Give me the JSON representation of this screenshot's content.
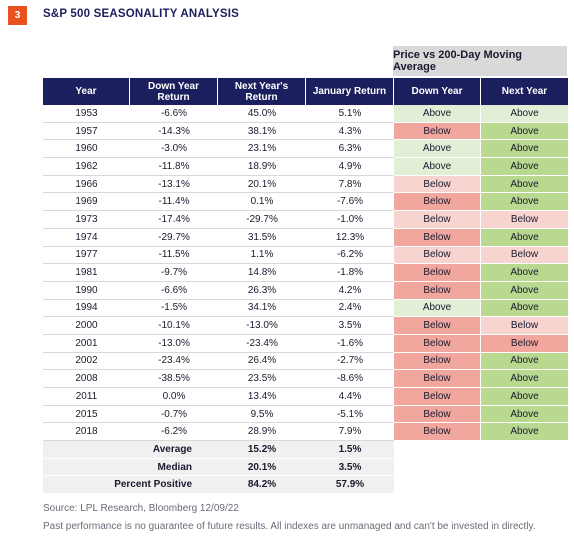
{
  "header": {
    "badge": "3",
    "title": "S&P 500 SEASONALITY ANALYSIS"
  },
  "group_header": "Price vs 200-Day Moving Average",
  "colors": {
    "navy": "#1b1f5e",
    "orange": "#e8521e",
    "above_light": "#e2efd6",
    "above_dark": "#b8d98f",
    "below_light": "#f7d4cf",
    "below_dark": "#f2a79e"
  },
  "chart_data": {
    "type": "table",
    "title": "S&P 500 SEASONALITY ANALYSIS",
    "columns": [
      "Year",
      "Down Year Return",
      "Next Year's Return",
      "January Return",
      "Down Year",
      "Next Year"
    ],
    "rows": [
      {
        "year": "1953",
        "down": "-6.6%",
        "next": "45.0%",
        "jan": "5.1%",
        "dy": "Above",
        "ny": "Above"
      },
      {
        "year": "1957",
        "down": "-14.3%",
        "next": "38.1%",
        "jan": "4.3%",
        "dy": "Below",
        "ny": "Above"
      },
      {
        "year": "1960",
        "down": "-3.0%",
        "next": "23.1%",
        "jan": "6.3%",
        "dy": "Above",
        "ny": "Above"
      },
      {
        "year": "1962",
        "down": "-11.8%",
        "next": "18.9%",
        "jan": "4.9%",
        "dy": "Above",
        "ny": "Above"
      },
      {
        "year": "1966",
        "down": "-13.1%",
        "next": "20.1%",
        "jan": "7.8%",
        "dy": "Below",
        "ny": "Above"
      },
      {
        "year": "1969",
        "down": "-11.4%",
        "next": "0.1%",
        "jan": "-7.6%",
        "dy": "Below",
        "ny": "Above"
      },
      {
        "year": "1973",
        "down": "-17.4%",
        "next": "-29.7%",
        "jan": "-1.0%",
        "dy": "Below",
        "ny": "Below"
      },
      {
        "year": "1974",
        "down": "-29.7%",
        "next": "31.5%",
        "jan": "12.3%",
        "dy": "Below",
        "ny": "Above"
      },
      {
        "year": "1977",
        "down": "-11.5%",
        "next": "1.1%",
        "jan": "-6.2%",
        "dy": "Below",
        "ny": "Below"
      },
      {
        "year": "1981",
        "down": "-9.7%",
        "next": "14.8%",
        "jan": "-1.8%",
        "dy": "Below",
        "ny": "Above"
      },
      {
        "year": "1990",
        "down": "-6.6%",
        "next": "26.3%",
        "jan": "4.2%",
        "dy": "Below",
        "ny": "Above"
      },
      {
        "year": "1994",
        "down": "-1.5%",
        "next": "34.1%",
        "jan": "2.4%",
        "dy": "Above",
        "ny": "Above"
      },
      {
        "year": "2000",
        "down": "-10.1%",
        "next": "-13.0%",
        "jan": "3.5%",
        "dy": "Below",
        "ny": "Below"
      },
      {
        "year": "2001",
        "down": "-13.0%",
        "next": "-23.4%",
        "jan": "-1.6%",
        "dy": "Below",
        "ny": "Below"
      },
      {
        "year": "2002",
        "down": "-23.4%",
        "next": "26.4%",
        "jan": "-2.7%",
        "dy": "Below",
        "ny": "Above"
      },
      {
        "year": "2008",
        "down": "-38.5%",
        "next": "23.5%",
        "jan": "-8.6%",
        "dy": "Below",
        "ny": "Above"
      },
      {
        "year": "2011",
        "down": "0.0%",
        "next": "13.4%",
        "jan": "4.4%",
        "dy": "Below",
        "ny": "Above"
      },
      {
        "year": "2015",
        "down": "-0.7%",
        "next": "9.5%",
        "jan": "-5.1%",
        "dy": "Below",
        "ny": "Above"
      },
      {
        "year": "2018",
        "down": "-6.2%",
        "next": "28.9%",
        "jan": "7.9%",
        "dy": "Below",
        "ny": "Above"
      }
    ],
    "summary": [
      {
        "label": "Average",
        "next": "15.2%",
        "jan": "1.5%"
      },
      {
        "label": "Median",
        "next": "20.1%",
        "jan": "3.5%"
      },
      {
        "label": "Percent Positive",
        "next": "84.2%",
        "jan": "57.9%"
      }
    ]
  },
  "footer": {
    "source": "Source: LPL Research, Bloomberg  12/09/22",
    "disclaimer": "Past performance is no guarantee of future results. All indexes are unmanaged and can't be invested in directly."
  }
}
